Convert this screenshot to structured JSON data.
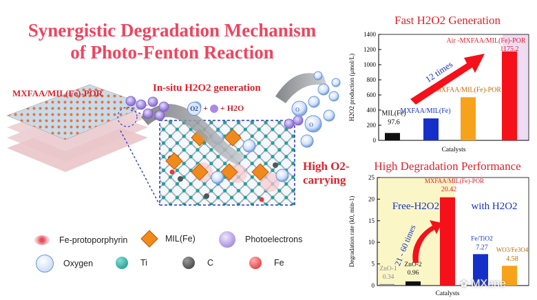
{
  "title": {
    "line1": "Synergistic Degradation Mechanism",
    "line2": "of Photo-Fenton Reaction"
  },
  "diagram": {
    "material_label": "MXFAA/MIL(Fe)-POR",
    "insitu_label": "In-situ H2O2 generation",
    "reaction_o2": "O2",
    "reaction_plus1": "+",
    "reaction_plus2": "+",
    "reaction_h2o": "H2O",
    "high_o2_line1": "High O2-",
    "high_o2_line2": "carrying"
  },
  "legend": {
    "items": [
      {
        "label": "Fe-protoporphyrin",
        "icon": "fe-protoporphyrin-icon"
      },
      {
        "label": "MIL(Fe)",
        "icon": "mil-fe-diamond-icon"
      },
      {
        "label": "Photoelectrons",
        "icon": "photoelectron-icon"
      },
      {
        "label": "Oxygen",
        "icon": "oxygen-bubble-icon"
      },
      {
        "label": "Ti",
        "icon": "ti-atom-icon"
      },
      {
        "label": "C",
        "icon": "c-atom-icon"
      },
      {
        "label": "Fe",
        "icon": "fe-atom-icon"
      }
    ]
  },
  "colors": {
    "title": "#f0445e",
    "accent_red": "#e0202a",
    "bar_black": "#111111",
    "bar_blue": "#1530c8",
    "bar_orange": "#f7a21b",
    "bar_red": "#f5101a",
    "mil_diamond": "#f08a1c",
    "oxygen_blue": "#7da7e8"
  },
  "watermark": "MXene",
  "chart_data": [
    {
      "type": "bar",
      "title": "Fast H2O2 Generation",
      "ylabel": "H2O2 production (μmol/L)",
      "xlabel": "Catalysts",
      "ylim": [
        0,
        1400
      ],
      "yticks": [
        0,
        200,
        400,
        600,
        800,
        1000,
        1200,
        1400
      ],
      "categories": [
        "MIL(Fe)",
        "MXFAA/MIL(Fe)",
        "MXFAA/MIL(Fe)-POR",
        "Air-MXFAA/MIL(Fe)-POR"
      ],
      "values": [
        97.6,
        290,
        570,
        1175.2
      ],
      "value_labels": [
        "97.6",
        "",
        "",
        "1175.2"
      ],
      "cat_labels": [
        "MIL(Fe)",
        "MXFAA/MIL(Fe)",
        "MXFAA/MIL(Fe)-POR",
        "Air -MXFAA/MIL(Fe)-POR"
      ],
      "colors": [
        "#111111",
        "#1530c8",
        "#f7a21b",
        "#f5101a"
      ],
      "annotation": "12 times"
    },
    {
      "type": "bar",
      "title": "High Degradation Performance",
      "ylabel": "Degradation rate (k0, min-1)",
      "xlabel": "Catalysts",
      "ylim": [
        0,
        25
      ],
      "yticks": [
        0,
        5,
        10,
        15,
        20,
        25
      ],
      "categories": [
        "ZnO-1",
        "ZnO-2",
        "MXFAA/MIL(Fe)-POR",
        "Fe/TiO2",
        "WO3/Fe3O4"
      ],
      "values": [
        0.34,
        0.96,
        20.42,
        7.27,
        4.58
      ],
      "value_labels": [
        "0.34",
        "0.96",
        "20.42",
        "7.27",
        "4.58"
      ],
      "cat_labels": [
        "ZnO-1",
        "ZnO-2",
        "MXFAA/MIL(Fe)-POR",
        "Fe/TiO2",
        "WO3/Fe3O4"
      ],
      "colors": [
        "#888888",
        "#111111",
        "#f5101a",
        "#1530c8",
        "#f7a21b"
      ],
      "region_labels": [
        "Free-H2O2",
        "with H2O2"
      ],
      "annotation": "21 - 60 times"
    }
  ]
}
